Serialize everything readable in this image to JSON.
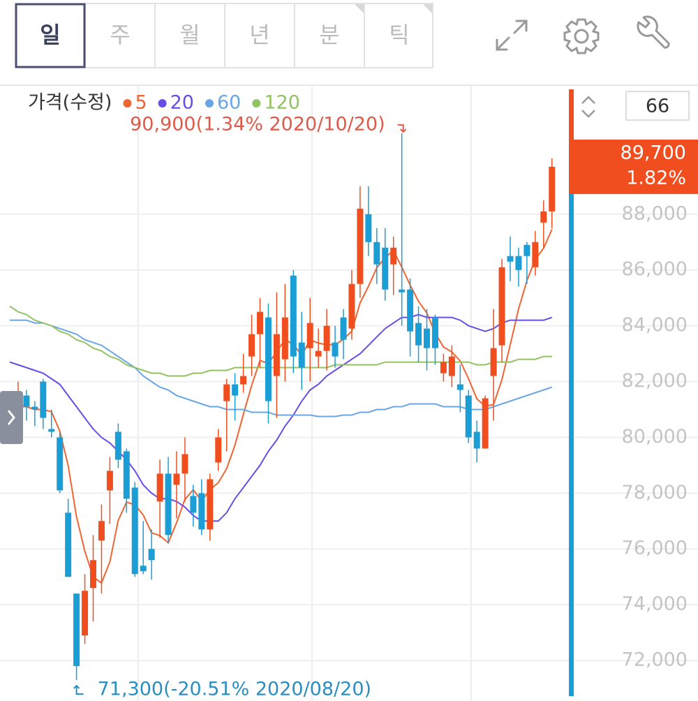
{
  "tabs": [
    "일",
    "주",
    "월",
    "년",
    "분",
    "틱"
  ],
  "chart_data": {
    "type": "candlestick",
    "title": "가격(수정)",
    "open": [
      81200,
      80700,
      81500,
      81100,
      82000,
      80300,
      80000,
      77300,
      74400,
      72900,
      74600,
      76300,
      78100,
      80200,
      79500,
      78200,
      75400,
      76000,
      77700,
      78700,
      78300,
      78700,
      77900,
      78000,
      76700,
      79100,
      81300,
      81900,
      81900,
      82900,
      83700,
      84300,
      82200,
      82800,
      85800,
      83400,
      83200,
      82900,
      83100,
      83400,
      84300,
      83900,
      85500,
      88000,
      87000,
      86800,
      86200,
      85300,
      85300,
      84100,
      83900,
      84300,
      82300,
      82200,
      81900,
      81500,
      80200,
      79600,
      82200,
      83300,
      86500,
      86500,
      86900,
      86100,
      87700,
      88100
    ],
    "high": [
      81300,
      82000,
      81700,
      81300,
      82100,
      81000,
      80200,
      77800,
      74400,
      75100,
      76500,
      77600,
      79300,
      80500,
      79600,
      78400,
      77000,
      76700,
      79200,
      79300,
      79500,
      80000,
      78300,
      78500,
      78700,
      80300,
      82100,
      82300,
      83000,
      84400,
      85000,
      84800,
      85200,
      85500,
      86000,
      84500,
      85000,
      83900,
      84600,
      84000,
      84600,
      86000,
      89000,
      89000,
      87500,
      87500,
      87200,
      90900,
      85700,
      84700,
      84600,
      84400,
      83000,
      83300,
      82600,
      81700,
      80600,
      81500,
      84600,
      86400,
      87200,
      86800,
      87000,
      87400,
      88500,
      90000
    ],
    "low": [
      79900,
      80300,
      80600,
      80400,
      80300,
      80000,
      78000,
      75000,
      71300,
      72600,
      73400,
      74400,
      76900,
      78900,
      77300,
      75000,
      75100,
      74900,
      76400,
      76200,
      77100,
      77700,
      76800,
      76500,
      76300,
      78800,
      79500,
      80600,
      81600,
      82200,
      82500,
      80500,
      80700,
      82000,
      82300,
      81700,
      82000,
      82500,
      82400,
      82500,
      82800,
      83500,
      85000,
      86500,
      85500,
      84900,
      85100,
      84000,
      82900,
      82700,
      82400,
      82600,
      82000,
      81800,
      80900,
      79800,
      79100,
      79600,
      80600,
      82700,
      85600,
      85400,
      85500,
      85800,
      86800,
      87500
    ],
    "close": [
      80600,
      81600,
      81100,
      81000,
      80700,
      80200,
      78100,
      75000,
      71800,
      74500,
      75600,
      77000,
      78800,
      79200,
      77800,
      75100,
      75200,
      75600,
      78700,
      76500,
      78700,
      79400,
      77300,
      76700,
      78500,
      80000,
      81900,
      81500,
      82200,
      83700,
      84500,
      81300,
      83700,
      84300,
      82900,
      82500,
      84100,
      83100,
      84000,
      82900,
      83500,
      85500,
      88200,
      87000,
      86200,
      85300,
      86800,
      85200,
      83800,
      83300,
      83200,
      83200,
      82700,
      82900,
      81700,
      80000,
      79600,
      81400,
      83200,
      86100,
      86300,
      86000,
      86500,
      87000,
      88100,
      89700
    ],
    "up_color": "#f04e1e",
    "down_color": "#1b9ed6",
    "series": [
      {
        "name": "5",
        "color": "#f06432",
        "values": [
          81000,
          81100,
          81100,
          81000,
          81000,
          80920,
          80220,
          79000,
          77160,
          75920,
          75000,
          74780,
          75540,
          77020,
          77680,
          77580,
          77220,
          76580,
          76480,
          76220,
          76940,
          77780,
          78120,
          77720,
          78120,
          78380,
          78880,
          79720,
          80820,
          81860,
          82760,
          82640,
          83080,
          83500,
          83340,
          82940,
          83500,
          83380,
          83320,
          83320,
          83520,
          83800,
          84820,
          85420,
          86080,
          86440,
          86700,
          86100,
          85460,
          84880,
          84460,
          83740,
          83240,
          83060,
          82740,
          82100,
          81380,
          81120,
          81180,
          82060,
          83320,
          84600,
          85620,
          86380,
          86780,
          87460
        ]
      },
      {
        "name": "20",
        "color": "#6a4ce6",
        "values": [
          82700,
          82600,
          82500,
          82400,
          82300,
          82100,
          81900,
          81500,
          81100,
          80700,
          80300,
          80000,
          79800,
          79500,
          79200,
          78800,
          78300,
          78000,
          77800,
          77800,
          77700,
          77500,
          77200,
          77000,
          77000,
          77000,
          77300,
          77800,
          78200,
          78600,
          79000,
          79500,
          79900,
          80400,
          80800,
          81300,
          81700,
          81900,
          82200,
          82400,
          82600,
          82800,
          83000,
          83300,
          83600,
          83900,
          84100,
          84300,
          84300,
          84400,
          84300,
          84300,
          84300,
          84300,
          84200,
          84000,
          83900,
          83800,
          83900,
          84100,
          84200,
          84200,
          84200,
          84200,
          84200,
          84300
        ]
      },
      {
        "name": "60",
        "color": "#6aa6e6",
        "values": [
          84200,
          84200,
          84200,
          84100,
          84100,
          84000,
          83900,
          83800,
          83700,
          83500,
          83400,
          83300,
          83100,
          82900,
          82700,
          82500,
          82200,
          82000,
          81800,
          81700,
          81500,
          81400,
          81300,
          81200,
          81100,
          81100,
          81000,
          81000,
          81000,
          80900,
          80900,
          80900,
          80800,
          80800,
          80800,
          80800,
          80800,
          80750,
          80750,
          80750,
          80800,
          80800,
          80900,
          80900,
          81000,
          81000,
          81100,
          81100,
          81200,
          81200,
          81200,
          81200,
          81100,
          81100,
          81100,
          81000,
          81000,
          81000,
          81100,
          81200,
          81300,
          81400,
          81500,
          81600,
          81700,
          81800
        ]
      },
      {
        "name": "120",
        "color": "#92c262",
        "values": [
          84700,
          84500,
          84400,
          84200,
          84100,
          84000,
          83800,
          83700,
          83500,
          83400,
          83200,
          83100,
          82900,
          82800,
          82600,
          82500,
          82400,
          82300,
          82300,
          82200,
          82200,
          82200,
          82300,
          82300,
          82400,
          82400,
          82400,
          82500,
          82500,
          82500,
          82500,
          82500,
          82500,
          82500,
          82500,
          82500,
          82500,
          82500,
          82500,
          82600,
          82600,
          82600,
          82600,
          82600,
          82600,
          82700,
          82700,
          82700,
          82700,
          82700,
          82700,
          82700,
          82700,
          82700,
          82700,
          82700,
          82600,
          82600,
          82700,
          82700,
          82700,
          82800,
          82800,
          82800,
          82900,
          82900
        ]
      }
    ],
    "ylim": [
      70550,
      92550
    ],
    "yticks": [
      {
        "value": 72000,
        "label": "72,000"
      },
      {
        "value": 74000,
        "label": "74,000"
      },
      {
        "value": 76000,
        "label": "76,000"
      },
      {
        "value": 78000,
        "label": "78,000"
      },
      {
        "value": 80000,
        "label": "80,000"
      },
      {
        "value": 82000,
        "label": "82,000"
      },
      {
        "value": 84000,
        "label": "84,000"
      },
      {
        "value": 86000,
        "label": "86,000"
      },
      {
        "value": 88000,
        "label": "88,000"
      }
    ],
    "grid": true,
    "annotations": [
      {
        "text": "90,900(1.34% 2020/10/20)",
        "value": 90900,
        "color": "#e05a4a"
      },
      {
        "text": "71,300(-20.51% 2020/08/20)",
        "value": 71300,
        "color": "#2a8fc0"
      }
    ],
    "last_price": {
      "value": 89700,
      "label": "89,700",
      "change": "1.82%",
      "color": "#f04e1e"
    },
    "count": 66
  }
}
